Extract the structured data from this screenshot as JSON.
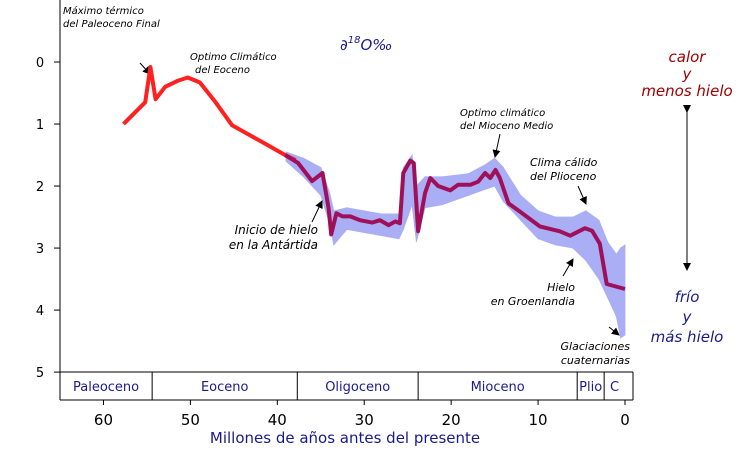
{
  "chart_data": {
    "type": "line",
    "y_label": {
      "prefix": "∂",
      "sup": "18",
      "suffix": "O‰"
    },
    "x_label": "Millones de años antes del presente",
    "xlim": [
      65,
      0
    ],
    "xticks": [
      60,
      50,
      40,
      30,
      20,
      10,
      0
    ],
    "ylim": [
      -1,
      5.45
    ],
    "yticks": [
      0,
      1,
      2,
      3,
      4,
      5
    ],
    "y_inverted": true,
    "series": [
      {
        "color": "#ff2020",
        "x": [
          57.7,
          55.2,
          54.6,
          54.0,
          52.9,
          51.4,
          50.3,
          48.9,
          47.1,
          45.2,
          42.0,
          39.1,
          37.9
        ],
        "values": [
          1.0,
          0.65,
          0.08,
          0.6,
          0.4,
          0.3,
          0.25,
          0.33,
          0.65,
          1.02,
          1.27,
          1.5,
          1.58
        ]
      },
      {
        "color": "#a0105a",
        "x": [
          39.1,
          37.6,
          36.0,
          34.8,
          34.1,
          33.8,
          33.2,
          32.5,
          31.6,
          30.5,
          29.1,
          28.2,
          27.2,
          26.4,
          25.9,
          25.5,
          24.7,
          24.3,
          23.8,
          23.0,
          22.4,
          21.5,
          20.1,
          19.2,
          17.8,
          16.9,
          16.1,
          15.5,
          14.9,
          14.4,
          13.4,
          12.1,
          9.8,
          7.5,
          6.3,
          4.6,
          3.8,
          2.9,
          2.1,
          0
        ],
        "values": [
          1.5,
          1.63,
          1.92,
          1.79,
          2.36,
          2.78,
          2.44,
          2.49,
          2.49,
          2.55,
          2.59,
          2.55,
          2.63,
          2.57,
          2.6,
          1.79,
          1.59,
          1.63,
          2.73,
          2.11,
          1.87,
          2.0,
          2.07,
          1.98,
          1.98,
          1.93,
          1.79,
          1.87,
          1.74,
          1.87,
          2.28,
          2.41,
          2.65,
          2.73,
          2.8,
          2.68,
          2.72,
          2.93,
          3.58,
          3.66
        ]
      }
    ],
    "band": {
      "color": "#a9aef5",
      "x": [
        39,
        37,
        35,
        34,
        33.5,
        32,
        30,
        28,
        26,
        25.5,
        24.5,
        24,
        23,
        21,
        18,
        16,
        15,
        14,
        12,
        10,
        8,
        6,
        4.5,
        3,
        2,
        1,
        0.5,
        0
      ],
      "lower": [
        1.45,
        1.55,
        1.7,
        2.1,
        2.4,
        2.35,
        2.4,
        2.45,
        2.45,
        1.7,
        1.5,
        2.0,
        1.85,
        1.85,
        1.8,
        1.65,
        1.55,
        1.7,
        2.15,
        2.4,
        2.5,
        2.5,
        2.4,
        2.55,
        2.9,
        3.1,
        3.0,
        2.95
      ],
      "upper": [
        1.6,
        1.85,
        2.15,
        2.6,
        2.95,
        2.7,
        2.75,
        2.8,
        2.85,
        2.7,
        2.3,
        2.9,
        2.35,
        2.3,
        2.15,
        2.05,
        2.0,
        2.25,
        2.55,
        2.85,
        2.95,
        3.0,
        3.2,
        3.5,
        3.8,
        4.1,
        4.45,
        4.4
      ]
    },
    "epochs": {
      "names": [
        "Paleoceno",
        "Eoceno",
        "Oligoceno",
        "Mioceno",
        "Plio",
        "C"
      ],
      "boundaries": [
        65,
        54.4,
        37.7,
        23.8,
        5.5,
        2.4,
        0
      ]
    },
    "annotations": [
      {
        "lines": [
          "Máximo térmico",
          "del Paleoceno Final"
        ]
      },
      {
        "lines": [
          "Optimo Climático",
          "del Eoceno"
        ]
      },
      {
        "lines": [
          "Optimo climático",
          "del Mioceno Medio"
        ]
      },
      {
        "lines": [
          "Clima cálido",
          "del Plioceno"
        ]
      },
      {
        "lines": [
          "Inicio de hielo",
          "en la Antártida"
        ]
      },
      {
        "lines": [
          "Hielo",
          "en Groenlandia"
        ]
      },
      {
        "lines": [
          "Glaciaciones",
          "cuaternarias"
        ]
      }
    ],
    "warm_label": [
      "calor",
      "y",
      "menos hielo"
    ],
    "cold_label": [
      "frío",
      "y",
      "más hielo"
    ]
  }
}
